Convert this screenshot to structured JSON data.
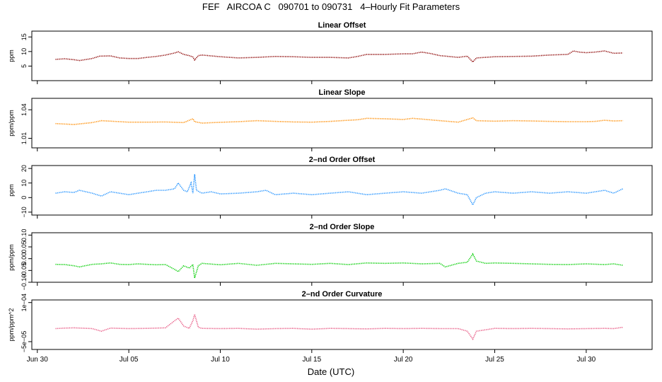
{
  "page": {
    "title": "FEF   AIRCOA C   090701 to 090731   4–Hourly Fit Parameters",
    "xlabel": "Date (UTC)"
  },
  "chart_data": {
    "type": "line",
    "x_unit": "days since Jun 30 2009 00:00 UTC",
    "xlim": [
      -0.3,
      33.6
    ],
    "x_ticks": [
      {
        "value": 0,
        "label": "Jun 30"
      },
      {
        "value": 5,
        "label": "Jul 05"
      },
      {
        "value": 10,
        "label": "Jul 10"
      },
      {
        "value": 15,
        "label": "Jul 15"
      },
      {
        "value": 20,
        "label": "Jul 20"
      },
      {
        "value": 25,
        "label": "Jul 25"
      },
      {
        "value": 30,
        "label": "Jul 30"
      }
    ],
    "panels": [
      {
        "title": "Linear Offset",
        "ylabel": "ppm",
        "color": "#8b0000",
        "ylim": [
          0,
          17
        ],
        "y_ticks": [
          {
            "value": 5,
            "label": "5"
          },
          {
            "value": 10,
            "label": "10"
          },
          {
            "value": 15,
            "label": "15"
          }
        ],
        "series": [
          [
            1,
            7.3
          ],
          [
            1.5,
            7.5
          ],
          [
            2,
            7.2
          ],
          [
            2.3,
            6.9
          ],
          [
            3,
            7.6
          ],
          [
            3.4,
            8.4
          ],
          [
            4,
            8.5
          ],
          [
            4.5,
            7.8
          ],
          [
            5,
            7.6
          ],
          [
            5.5,
            7.6
          ],
          [
            6,
            8.0
          ],
          [
            6.5,
            8.3
          ],
          [
            7,
            8.8
          ],
          [
            7.5,
            9.5
          ],
          [
            7.7,
            9.9
          ],
          [
            8,
            9.0
          ],
          [
            8.3,
            8.6
          ],
          [
            8.5,
            8.1
          ],
          [
            8.6,
            7.1
          ],
          [
            8.8,
            8.6
          ],
          [
            9,
            8.8
          ],
          [
            10,
            8.2
          ],
          [
            11,
            7.8
          ],
          [
            12,
            8.0
          ],
          [
            13,
            8.3
          ],
          [
            14,
            8.2
          ],
          [
            15,
            8.0
          ],
          [
            16,
            8.0
          ],
          [
            17,
            7.8
          ],
          [
            17.5,
            8.3
          ],
          [
            18,
            9.0
          ],
          [
            19,
            9.0
          ],
          [
            20,
            9.2
          ],
          [
            20.5,
            9.2
          ],
          [
            21,
            9.8
          ],
          [
            21.5,
            9.3
          ],
          [
            22,
            8.6
          ],
          [
            23,
            8.0
          ],
          [
            23.5,
            8.4
          ],
          [
            23.8,
            6.4
          ],
          [
            24,
            7.8
          ],
          [
            25,
            8.2
          ],
          [
            26,
            8.3
          ],
          [
            27,
            8.4
          ],
          [
            28,
            8.8
          ],
          [
            29,
            9.0
          ],
          [
            29.3,
            10.2
          ],
          [
            29.6,
            9.8
          ],
          [
            30,
            9.6
          ],
          [
            30.5,
            9.8
          ],
          [
            31,
            10.2
          ],
          [
            31.5,
            9.4
          ],
          [
            32,
            9.5
          ]
        ]
      },
      {
        "title": "Linear Slope",
        "ylabel": "ppm/ppm",
        "color": "#ff8c00",
        "ylim": [
          1.0,
          1.052
        ],
        "y_ticks": [
          {
            "value": 1.01,
            "label": "1.01"
          },
          {
            "value": 1.04,
            "label": "1.04"
          }
        ],
        "series": [
          [
            1,
            1.0255
          ],
          [
            2,
            1.0245
          ],
          [
            3,
            1.0265
          ],
          [
            3.5,
            1.0285
          ],
          [
            4,
            1.028
          ],
          [
            5,
            1.027
          ],
          [
            6,
            1.027
          ],
          [
            7,
            1.0272
          ],
          [
            8,
            1.0265
          ],
          [
            8.5,
            1.0305
          ],
          [
            8.6,
            1.0275
          ],
          [
            9,
            1.026
          ],
          [
            10,
            1.0268
          ],
          [
            11,
            1.0275
          ],
          [
            12,
            1.0285
          ],
          [
            13,
            1.0278
          ],
          [
            14,
            1.0272
          ],
          [
            15,
            1.027
          ],
          [
            16,
            1.0278
          ],
          [
            17,
            1.029
          ],
          [
            17.5,
            1.0295
          ],
          [
            18,
            1.031
          ],
          [
            19,
            1.0305
          ],
          [
            20,
            1.0298
          ],
          [
            20.5,
            1.031
          ],
          [
            21,
            1.0302
          ],
          [
            22,
            1.0285
          ],
          [
            23,
            1.027
          ],
          [
            23.8,
            1.0315
          ],
          [
            24,
            1.0285
          ],
          [
            25,
            1.028
          ],
          [
            26,
            1.0285
          ],
          [
            27,
            1.0282
          ],
          [
            28,
            1.0278
          ],
          [
            29,
            1.0275
          ],
          [
            30,
            1.0275
          ],
          [
            30.5,
            1.0278
          ],
          [
            31,
            1.029
          ],
          [
            31.5,
            1.0282
          ],
          [
            32,
            1.0285
          ]
        ]
      },
      {
        "title": "2–nd Order Offset",
        "ylabel": "ppm",
        "color": "#1e90ff",
        "ylim": [
          -12,
          22
        ],
        "y_ticks": [
          {
            "value": -10,
            "label": "−10"
          },
          {
            "value": 0,
            "label": "0"
          },
          {
            "value": 10,
            "label": "10"
          },
          {
            "value": 20,
            "label": "20"
          }
        ],
        "series": [
          [
            1,
            3
          ],
          [
            1.5,
            4
          ],
          [
            2,
            3.5
          ],
          [
            2.3,
            5
          ],
          [
            3,
            3
          ],
          [
            3.5,
            1
          ],
          [
            4,
            4
          ],
          [
            4.5,
            3
          ],
          [
            5,
            2
          ],
          [
            5.5,
            3
          ],
          [
            6,
            4
          ],
          [
            6.5,
            5
          ],
          [
            7,
            5
          ],
          [
            7.5,
            6
          ],
          [
            7.7,
            10
          ],
          [
            8,
            5
          ],
          [
            8.2,
            4
          ],
          [
            8.4,
            10
          ],
          [
            8.5,
            3
          ],
          [
            8.6,
            16
          ],
          [
            8.7,
            5
          ],
          [
            9,
            3
          ],
          [
            9.5,
            4
          ],
          [
            10,
            2.5
          ],
          [
            11,
            3
          ],
          [
            12,
            4
          ],
          [
            12.5,
            5
          ],
          [
            13,
            2
          ],
          [
            14,
            3
          ],
          [
            15,
            2
          ],
          [
            16,
            3
          ],
          [
            17,
            4
          ],
          [
            18,
            2
          ],
          [
            19,
            3
          ],
          [
            20,
            4
          ],
          [
            21,
            3
          ],
          [
            22,
            5
          ],
          [
            22.3,
            6
          ],
          [
            23,
            3
          ],
          [
            23.5,
            2
          ],
          [
            23.8,
            -5
          ],
          [
            24,
            0
          ],
          [
            24.5,
            3
          ],
          [
            25,
            4
          ],
          [
            26,
            3
          ],
          [
            27,
            4
          ],
          [
            28,
            3
          ],
          [
            29,
            4
          ],
          [
            30,
            3
          ],
          [
            31,
            5
          ],
          [
            31.5,
            3
          ],
          [
            32,
            6
          ]
        ]
      },
      {
        "title": "2–nd Order Slope",
        "ylabel": "ppm/ppm",
        "color": "#00cd00",
        "ylim": [
          -0.1,
          0.11
        ],
        "y_ticks": [
          {
            "value": -0.1,
            "label": "−0.10"
          },
          {
            "value": -0.05,
            "label": "−0.05"
          },
          {
            "value": 0,
            "label": "0.00"
          },
          {
            "value": 0.05,
            "label": "0.05"
          },
          {
            "value": 0.1,
            "label": "0.10"
          }
        ],
        "series": [
          [
            1,
            -0.024
          ],
          [
            1.5,
            -0.025
          ],
          [
            2,
            -0.03
          ],
          [
            2.3,
            -0.035
          ],
          [
            3,
            -0.024
          ],
          [
            3.5,
            -0.022
          ],
          [
            4,
            -0.018
          ],
          [
            4.5,
            -0.024
          ],
          [
            5,
            -0.025
          ],
          [
            5.5,
            -0.022
          ],
          [
            6,
            -0.024
          ],
          [
            6.5,
            -0.026
          ],
          [
            7,
            -0.025
          ],
          [
            7.5,
            -0.045
          ],
          [
            7.7,
            -0.055
          ],
          [
            8,
            -0.03
          ],
          [
            8.3,
            -0.04
          ],
          [
            8.5,
            -0.025
          ],
          [
            8.6,
            -0.082
          ],
          [
            8.8,
            -0.03
          ],
          [
            9,
            -0.02
          ],
          [
            10,
            -0.026
          ],
          [
            11,
            -0.02
          ],
          [
            12,
            -0.028
          ],
          [
            13,
            -0.02
          ],
          [
            14,
            -0.022
          ],
          [
            15,
            -0.024
          ],
          [
            16,
            -0.02
          ],
          [
            17,
            -0.025
          ],
          [
            18,
            -0.018
          ],
          [
            19,
            -0.02
          ],
          [
            20,
            -0.018
          ],
          [
            21,
            -0.022
          ],
          [
            22,
            -0.02
          ],
          [
            22.3,
            -0.035
          ],
          [
            23,
            -0.02
          ],
          [
            23.5,
            -0.015
          ],
          [
            23.8,
            0.02
          ],
          [
            24,
            -0.01
          ],
          [
            24.5,
            -0.02
          ],
          [
            25,
            -0.018
          ],
          [
            26,
            -0.02
          ],
          [
            27,
            -0.022
          ],
          [
            28,
            -0.024
          ],
          [
            29,
            -0.025
          ],
          [
            30,
            -0.022
          ],
          [
            31,
            -0.025
          ],
          [
            31.5,
            -0.022
          ],
          [
            32,
            -0.028
          ]
        ]
      },
      {
        "title": "2–nd Order Curvature",
        "ylabel": "ppm/ppm^2",
        "color": "#e75480",
        "ylim": [
          -8e-05,
          0.00011
        ],
        "y_ticks": [
          {
            "value": -5e-05,
            "label": "−5e−05"
          },
          {
            "value": 0.0001,
            "label": "1e−04"
          }
        ],
        "series": [
          [
            1,
            0
          ],
          [
            1.5,
            2e-06
          ],
          [
            2,
            3e-06
          ],
          [
            3,
            0
          ],
          [
            3.5,
            -1e-05
          ],
          [
            4,
            2e-06
          ],
          [
            4.5,
            1e-06
          ],
          [
            5,
            0
          ],
          [
            6,
            1e-06
          ],
          [
            6.5,
            2e-06
          ],
          [
            7,
            3e-06
          ],
          [
            7.5,
            3e-05
          ],
          [
            7.7,
            4e-05
          ],
          [
            8,
            1e-05
          ],
          [
            8.3,
            1e-06
          ],
          [
            8.5,
            3e-05
          ],
          [
            8.6,
            5.5e-05
          ],
          [
            8.8,
            5e-06
          ],
          [
            9,
            1e-06
          ],
          [
            10,
            0
          ],
          [
            11,
            1e-06
          ],
          [
            12,
            -2e-06
          ],
          [
            13,
            0
          ],
          [
            14,
            1e-06
          ],
          [
            15,
            -2e-06
          ],
          [
            16,
            1e-06
          ],
          [
            17,
            0
          ],
          [
            18,
            -1e-06
          ],
          [
            19,
            1e-06
          ],
          [
            20,
            0
          ],
          [
            21,
            1e-06
          ],
          [
            22,
            0
          ],
          [
            23,
            0
          ],
          [
            23.5,
            -1e-05
          ],
          [
            23.8,
            -4e-05
          ],
          [
            24,
            -1e-05
          ],
          [
            25,
            1e-06
          ],
          [
            26,
            0
          ],
          [
            27,
            1e-06
          ],
          [
            28,
            0
          ],
          [
            29,
            -1e-06
          ],
          [
            30,
            0
          ],
          [
            31,
            1e-06
          ],
          [
            31.5,
            0
          ],
          [
            32,
            5e-06
          ]
        ]
      }
    ]
  }
}
